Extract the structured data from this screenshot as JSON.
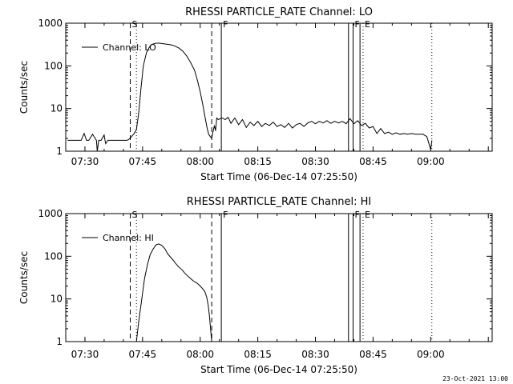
{
  "footer_date": "23-Oct-2021 13:00",
  "chart_data": [
    {
      "type": "line",
      "title": "RHESSI PARTICLE_RATE Channel: LO",
      "xlabel": "Start Time (06-Dec-14 07:25:50)",
      "ylabel": "Counts/sec",
      "yscale": "log",
      "ylim": [
        1,
        1000
      ],
      "yticks": [
        {
          "v": 1,
          "label": "1"
        },
        {
          "v": 10,
          "label": "10"
        },
        {
          "v": 100,
          "label": "100"
        },
        {
          "v": 1000,
          "label": "1000"
        }
      ],
      "xlim_min": [
        445,
        556
      ],
      "xticks": [
        {
          "v": 450,
          "label": "07:30"
        },
        {
          "v": 465,
          "label": "07:45"
        },
        {
          "v": 480,
          "label": "08:00"
        },
        {
          "v": 495,
          "label": "08:15"
        },
        {
          "v": 510,
          "label": "08:30"
        },
        {
          "v": 525,
          "label": "08:45"
        },
        {
          "v": 540,
          "label": "09:00"
        }
      ],
      "legend": {
        "label": "Channel: LO",
        "position": "top-left"
      },
      "markers": [
        {
          "t": 461.8,
          "style": "dashed",
          "label": "S"
        },
        {
          "t": 463.4,
          "style": "dotted",
          "label": ""
        },
        {
          "t": 483.0,
          "style": "dashed",
          "label": ""
        },
        {
          "t": 485.5,
          "style": "solid",
          "label": "F"
        },
        {
          "t": 518.6,
          "style": "solid",
          "label": ""
        },
        {
          "t": 519.8,
          "style": "solid",
          "label": "F"
        },
        {
          "t": 521.6,
          "style": "solid",
          "label": ""
        },
        {
          "t": 522.4,
          "style": "dotted",
          "label": "E"
        },
        {
          "t": 540.3,
          "style": "dotted",
          "label": ""
        }
      ],
      "series": [
        {
          "t": [
            445.5,
            449,
            449.8,
            450.4,
            451,
            452,
            453,
            453.2,
            453.6,
            454.2,
            455,
            455.4,
            456,
            457,
            458,
            459,
            460,
            461,
            461.8,
            462.3,
            462.8,
            463.4,
            464,
            464.6,
            465.2,
            466,
            466.8,
            467.5,
            468.5,
            469.5,
            470.5,
            471.5,
            472.5,
            473.5,
            474.5,
            475.5,
            476.5,
            477.5,
            478.5,
            479.3,
            480,
            480.7,
            481.3,
            481.8,
            482.2,
            482.6,
            483,
            483.4,
            483.7,
            484,
            484.3,
            484.7,
            485.2,
            485.8,
            486.5,
            487.3,
            488,
            489,
            490,
            491,
            492,
            493,
            494,
            495,
            496,
            497,
            498,
            499,
            500,
            501,
            502,
            503,
            504,
            505,
            506,
            507,
            508,
            509,
            510,
            511,
            512,
            513,
            514,
            515,
            516,
            517,
            518,
            519,
            520,
            521,
            522,
            523,
            524,
            525,
            526,
            527,
            528,
            529,
            530,
            531,
            532,
            533,
            534,
            535,
            536,
            537,
            538,
            539,
            540,
            540.3
          ],
          "y": [
            1.8,
            1.8,
            2.6,
            1.8,
            1.8,
            2.5,
            1.8,
            1.0,
            1.8,
            1.8,
            2.4,
            1.5,
            1.8,
            1.8,
            1.8,
            1.8,
            1.8,
            1.8,
            2.0,
            2.3,
            2.6,
            3.2,
            8,
            30,
            100,
            200,
            280,
            320,
            340,
            340,
            330,
            320,
            310,
            290,
            260,
            220,
            170,
            120,
            80,
            45,
            25,
            12,
            6,
            3.5,
            2.5,
            2.2,
            2.0,
            3.0,
            4.0,
            3.0,
            6.0,
            5.5,
            5.8,
            6.0,
            5.5,
            6.2,
            4.5,
            6.0,
            4.2,
            5.5,
            3.6,
            4.8,
            4.0,
            5.0,
            3.8,
            4.5,
            4.0,
            4.8,
            3.8,
            4.2,
            3.6,
            4.5,
            3.5,
            4.2,
            4.5,
            3.8,
            4.6,
            5.0,
            4.4,
            5.0,
            4.6,
            5.2,
            4.5,
            5.0,
            4.6,
            5.0,
            4.4,
            5.8,
            4.4,
            5.2,
            4.0,
            4.5,
            3.5,
            3.8,
            2.6,
            3.4,
            2.6,
            2.8,
            2.5,
            2.7,
            2.5,
            2.6,
            2.5,
            2.6,
            2.5,
            2.5,
            2.5,
            2.2,
            1.1,
            1.8
          ]
        }
      ]
    },
    {
      "type": "line",
      "title": "RHESSI PARTICLE_RATE Channel: HI",
      "xlabel": "Start Time (06-Dec-14 07:25:50)",
      "ylabel": "Counts/sec",
      "yscale": "log",
      "ylim": [
        1,
        1000
      ],
      "yticks": [
        {
          "v": 1,
          "label": "1"
        },
        {
          "v": 10,
          "label": "10"
        },
        {
          "v": 100,
          "label": "100"
        },
        {
          "v": 1000,
          "label": "1000"
        }
      ],
      "xlim_min": [
        445,
        556
      ],
      "xticks": [
        {
          "v": 450,
          "label": "07:30"
        },
        {
          "v": 465,
          "label": "07:45"
        },
        {
          "v": 480,
          "label": "08:00"
        },
        {
          "v": 495,
          "label": "08:15"
        },
        {
          "v": 510,
          "label": "08:30"
        },
        {
          "v": 525,
          "label": "08:45"
        },
        {
          "v": 540,
          "label": "09:00"
        }
      ],
      "legend": {
        "label": "Channel: HI",
        "position": "top-left"
      },
      "markers": [
        {
          "t": 461.8,
          "style": "dashed",
          "label": "S"
        },
        {
          "t": 463.4,
          "style": "dotted",
          "label": ""
        },
        {
          "t": 483.0,
          "style": "dashed",
          "label": ""
        },
        {
          "t": 485.5,
          "style": "solid",
          "label": "F"
        },
        {
          "t": 518.6,
          "style": "solid",
          "label": ""
        },
        {
          "t": 519.8,
          "style": "solid",
          "label": "F"
        },
        {
          "t": 521.6,
          "style": "solid",
          "label": ""
        },
        {
          "t": 522.4,
          "style": "dotted",
          "label": "E"
        },
        {
          "t": 540.3,
          "style": "dotted",
          "label": ""
        }
      ],
      "series": [
        {
          "t": [
            463.4,
            464,
            464.8,
            465.5,
            466.3,
            467,
            467.8,
            468.5,
            469.2,
            470,
            470.8,
            471.5,
            472.3,
            473,
            473.8,
            474.5,
            475.3,
            476,
            476.8,
            477.5,
            478.3,
            479,
            479.8,
            480.5,
            481.2,
            481.7,
            482.1,
            482.4,
            482.7,
            483
          ],
          "y": [
            1.0,
            3.0,
            10,
            30,
            65,
            110,
            150,
            185,
            195,
            180,
            150,
            115,
            95,
            80,
            65,
            55,
            48,
            40,
            34,
            30,
            26,
            24,
            21,
            18,
            15,
            11,
            7,
            4,
            2,
            1.0
          ]
        }
      ]
    }
  ]
}
